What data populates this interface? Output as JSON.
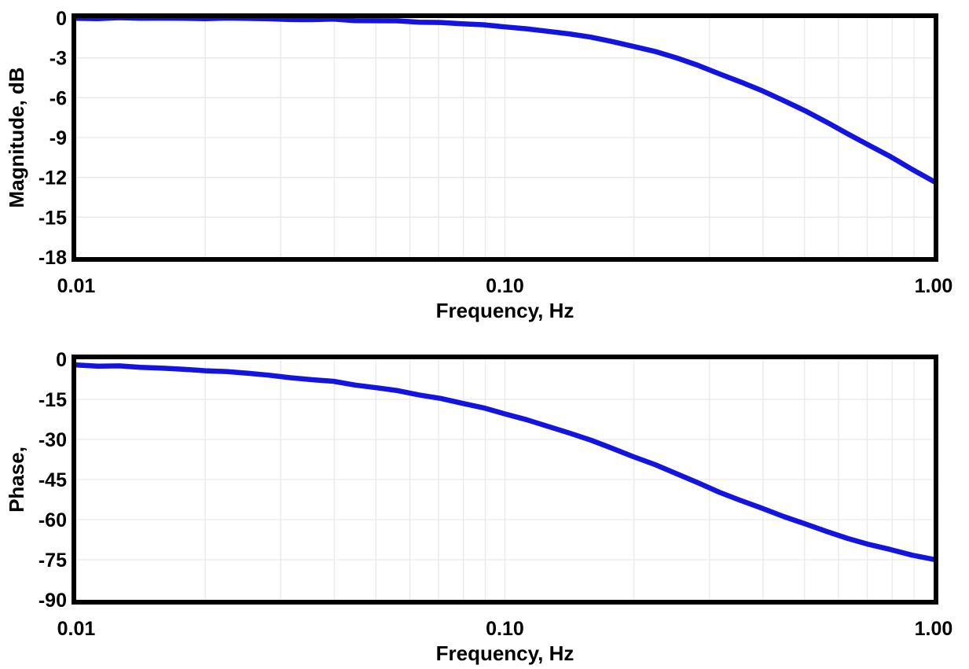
{
  "figure": {
    "background": "#ffffff"
  },
  "colors": {
    "curve": "#1414e0",
    "grid": "#e9e9e9",
    "axis": "#000000",
    "text": "#000000"
  },
  "chart_data": [
    {
      "type": "line",
      "title": "",
      "xlabel": "Frequency, Hz",
      "ylabel": "Magnitude, dB",
      "xscale": "log",
      "xlim": [
        0.01,
        1.0
      ],
      "ylim": [
        -18,
        0
      ],
      "xticks": [
        0.01,
        0.1,
        1.0
      ],
      "xtick_labels": [
        "0.01",
        "0.10",
        "1.00"
      ],
      "yticks": [
        0,
        -3,
        -6,
        -9,
        -12,
        -15,
        -18
      ],
      "ytick_labels": [
        "0",
        "-3",
        "-6",
        "-9",
        "-12",
        "-15",
        "-18"
      ],
      "grid": "log-minor-and-major",
      "legend": false,
      "series": [
        {
          "name": "magnitude",
          "x": [
            0.01,
            0.0112,
            0.0126,
            0.0141,
            0.0158,
            0.0178,
            0.02,
            0.0224,
            0.0251,
            0.0282,
            0.0316,
            0.0355,
            0.0398,
            0.0447,
            0.0501,
            0.0562,
            0.0631,
            0.0708,
            0.0794,
            0.0891,
            0.1,
            0.1122,
            0.1259,
            0.1413,
            0.1585,
            0.1778,
            0.1995,
            0.2239,
            0.2512,
            0.2818,
            0.3162,
            0.3548,
            0.3981,
            0.4467,
            0.5012,
            0.5623,
            0.631,
            0.7079,
            0.7943,
            0.8913,
            1.0
          ],
          "y": [
            -0.01,
            -0.01,
            -0.01,
            -0.01,
            -0.02,
            -0.02,
            -0.03,
            -0.03,
            -0.04,
            -0.05,
            -0.07,
            -0.09,
            -0.11,
            -0.14,
            -0.17,
            -0.21,
            -0.27,
            -0.34,
            -0.42,
            -0.52,
            -0.64,
            -0.8,
            -0.98,
            -1.2,
            -1.47,
            -1.78,
            -2.14,
            -2.56,
            -3.03,
            -3.56,
            -4.15,
            -4.79,
            -5.49,
            -6.22,
            -7.01,
            -7.82,
            -8.68,
            -9.55,
            -10.45,
            -11.37,
            -12.3
          ]
        }
      ]
    },
    {
      "type": "line",
      "title": "",
      "xlabel": "Frequency, Hz",
      "ylabel": "Phase,",
      "xscale": "log",
      "xlim": [
        0.01,
        1.0
      ],
      "ylim": [
        -90,
        0
      ],
      "xticks": [
        0.01,
        0.1,
        1.0
      ],
      "xtick_labels": [
        "0.01",
        "0.10",
        "1.00"
      ],
      "yticks": [
        0,
        -15,
        -30,
        -45,
        -60,
        -75,
        -90
      ],
      "ytick_labels": [
        "0",
        "-15",
        "-30",
        "-45",
        "-60",
        "-75",
        "-90"
      ],
      "grid": "log-minor-and-major",
      "legend": false,
      "series": [
        {
          "name": "phase",
          "x": [
            0.01,
            0.0112,
            0.0126,
            0.0141,
            0.0158,
            0.0178,
            0.02,
            0.0224,
            0.0251,
            0.0282,
            0.0316,
            0.0355,
            0.0398,
            0.0447,
            0.0501,
            0.0562,
            0.0631,
            0.0708,
            0.0794,
            0.0891,
            0.1,
            0.1122,
            0.1259,
            0.1413,
            0.1585,
            0.1778,
            0.1995,
            0.2239,
            0.2512,
            0.2818,
            0.3162,
            0.3548,
            0.3981,
            0.4467,
            0.5012,
            0.5623,
            0.631,
            0.7079,
            0.7943,
            0.8913,
            1.0
          ],
          "y": [
            -2.12,
            -2.38,
            -2.67,
            -2.99,
            -3.35,
            -3.77,
            -4.24,
            -4.74,
            -5.31,
            -5.96,
            -6.68,
            -7.49,
            -8.39,
            -9.4,
            -10.51,
            -11.76,
            -13.15,
            -14.69,
            -16.38,
            -18.26,
            -20.32,
            -22.57,
            -25.0,
            -27.63,
            -30.42,
            -33.37,
            -36.46,
            -39.66,
            -42.94,
            -46.22,
            -49.5,
            -52.73,
            -55.87,
            -58.86,
            -61.69,
            -64.35,
            -66.83,
            -69.12,
            -71.22,
            -73.16,
            -74.89
          ]
        }
      ]
    }
  ]
}
